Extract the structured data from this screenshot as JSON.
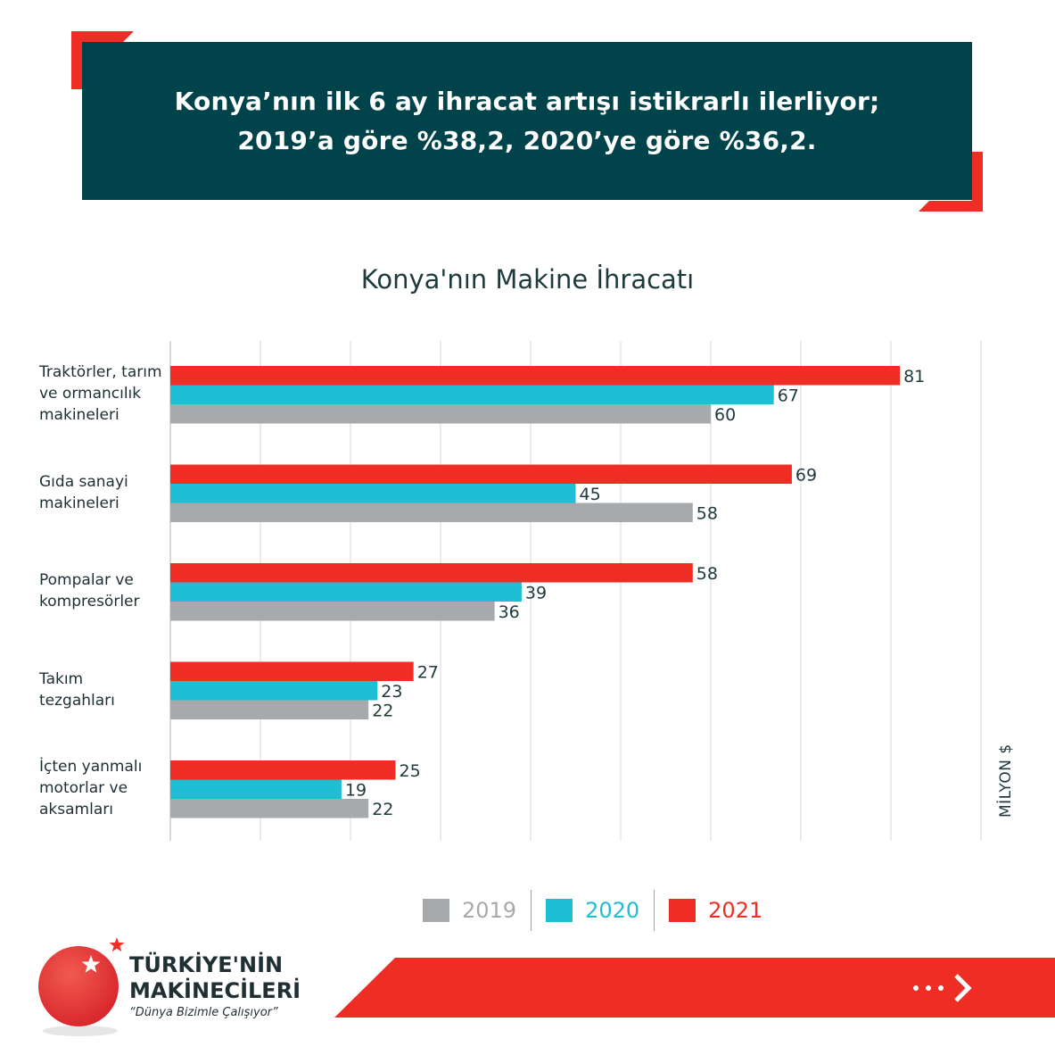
{
  "header": {
    "line1": "Konya’nın ilk 6 ay ihracat artışı istikrarlı ilerliyor;",
    "line2": "2019’a göre %38,2, 2020’ye göre %36,2."
  },
  "colors": {
    "banner": "#00434b",
    "accent_red": "#ee2e24",
    "series_2019": "#a7aaad",
    "series_2020": "#1ebed4",
    "series_2021": "#ee2e24",
    "text_dark": "#1f3a3d"
  },
  "chart_data": {
    "type": "bar",
    "orientation": "horizontal",
    "title": "Konya'nın Makine İhracatı",
    "unit_label": "MİLYON $",
    "categories": [
      "Traktörler, tarım ve ormancılık makineleri",
      "Gıda sanayi makineleri",
      "Pompalar ve kompresörler",
      "Takım tezgahları",
      "İçten yanmalı motorlar ve aksamları"
    ],
    "category_lines": [
      [
        "Traktörler, tarım",
        "ve ormancılık",
        "makineleri"
      ],
      [
        "Gıda sanayi",
        "makineleri"
      ],
      [
        "Pompalar ve",
        "kompresörler"
      ],
      [
        "Takım",
        "tezgahları"
      ],
      [
        "İçten yanmalı",
        "motorlar ve",
        "aksamları"
      ]
    ],
    "series": [
      {
        "name": "2021",
        "color": "#ee2e24",
        "values": [
          81,
          69,
          58,
          27,
          25
        ]
      },
      {
        "name": "2020",
        "color": "#1ebed4",
        "values": [
          67,
          45,
          39,
          23,
          19
        ]
      },
      {
        "name": "2019",
        "color": "#a7aaad",
        "values": [
          60,
          58,
          36,
          22,
          22
        ]
      }
    ],
    "legend": [
      "2019",
      "2020",
      "2021"
    ],
    "grid": true
  },
  "legend": {
    "items": [
      {
        "label": "2019",
        "color": "#a7aaad"
      },
      {
        "label": "2020",
        "color": "#1ebed4"
      },
      {
        "label": "2021",
        "color": "#ee2e24"
      }
    ]
  },
  "logo": {
    "line1": "TÜRKİYE'NİN",
    "line2": "MAKİNECİLERİ",
    "slogan": "“Dünya Bizimle Çalışıyor”"
  },
  "footer": {
    "next_icon": "chevron-right-icon",
    "dots_icon": "ellipsis-icon"
  }
}
